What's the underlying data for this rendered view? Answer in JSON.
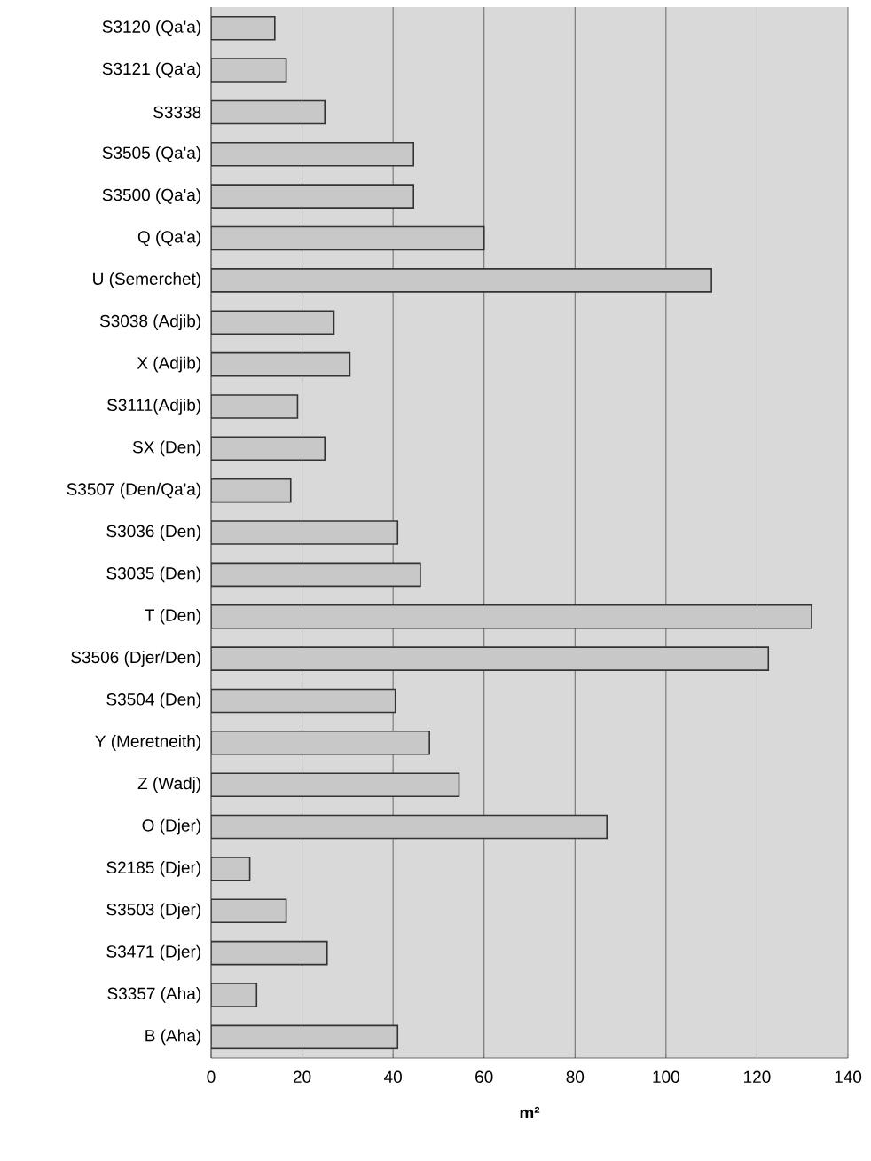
{
  "chart_data": {
    "type": "bar",
    "orientation": "horizontal",
    "xlabel": "m²",
    "categories": [
      "S3120 (Qa'a)",
      "S3121 (Qa'a)",
      "S3338",
      "S3505 (Qa'a)",
      "S3500 (Qa'a)",
      "Q (Qa'a)",
      "U (Semerchet)",
      "S3038 (Adjib)",
      "X (Adjib)",
      "S3111(Adjib)",
      "SX (Den)",
      "S3507 (Den/Qa'a)",
      "S3036 (Den)",
      "S3035 (Den)",
      "T (Den)",
      "S3506 (Djer/Den)",
      "S3504 (Den)",
      "Y (Meretneith)",
      "Z (Wadj)",
      "O (Djer)",
      "S2185 (Djer)",
      "S3503 (Djer)",
      "S3471 (Djer)",
      "S3357 (Aha)",
      "B (Aha)"
    ],
    "values": [
      14,
      16.5,
      25,
      44.5,
      44.5,
      60,
      110,
      27,
      30.5,
      19,
      25,
      17.5,
      41,
      46,
      132,
      122.5,
      40.5,
      48,
      54.5,
      87,
      8.5,
      16.5,
      25.5,
      10,
      41
    ],
    "color": "#c8c8c8",
    "xlim": [
      0,
      140
    ],
    "xticks": [
      0,
      20,
      40,
      60,
      80,
      100,
      120,
      140
    ],
    "grid": "x"
  }
}
